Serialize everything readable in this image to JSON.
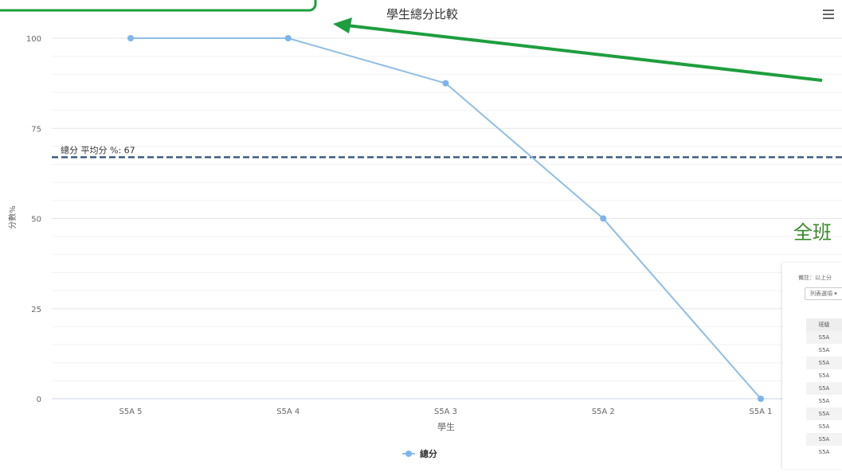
{
  "chart_data": {
    "type": "line",
    "title": "學生總分比較",
    "xlabel": "學生",
    "ylabel": "分數%",
    "categories": [
      "S5A 5",
      "S5A 4",
      "S5A 3",
      "S5A 2",
      "S5A 1"
    ],
    "series": [
      {
        "name": "總分",
        "values": [
          100,
          100,
          87.5,
          50,
          0
        ]
      }
    ],
    "ylim": [
      0,
      100
    ],
    "yticks": [
      0,
      25,
      50,
      75,
      100
    ],
    "grid": true,
    "legend_position": "bottom",
    "plot_band": {
      "label": "總分 平均分 %: 67",
      "value": 67
    },
    "colors": {
      "line": "#90bde4",
      "marker": "#7cb5ec",
      "plot_line": "#3d5a80",
      "annotation": "#1e9e3e"
    }
  },
  "menu": {
    "icon": "hamburger-menu-icon"
  },
  "overlay": {
    "heading": "全班"
  },
  "side_panel": {
    "note": "備註：以上分",
    "list_select": "列表選項 ▾",
    "table": {
      "header": "班級",
      "rows": [
        "S5A",
        "S5A",
        "S5A",
        "S5A",
        "S5A",
        "S5A",
        "S5A",
        "S5A",
        "S5A",
        "S5A"
      ]
    }
  }
}
